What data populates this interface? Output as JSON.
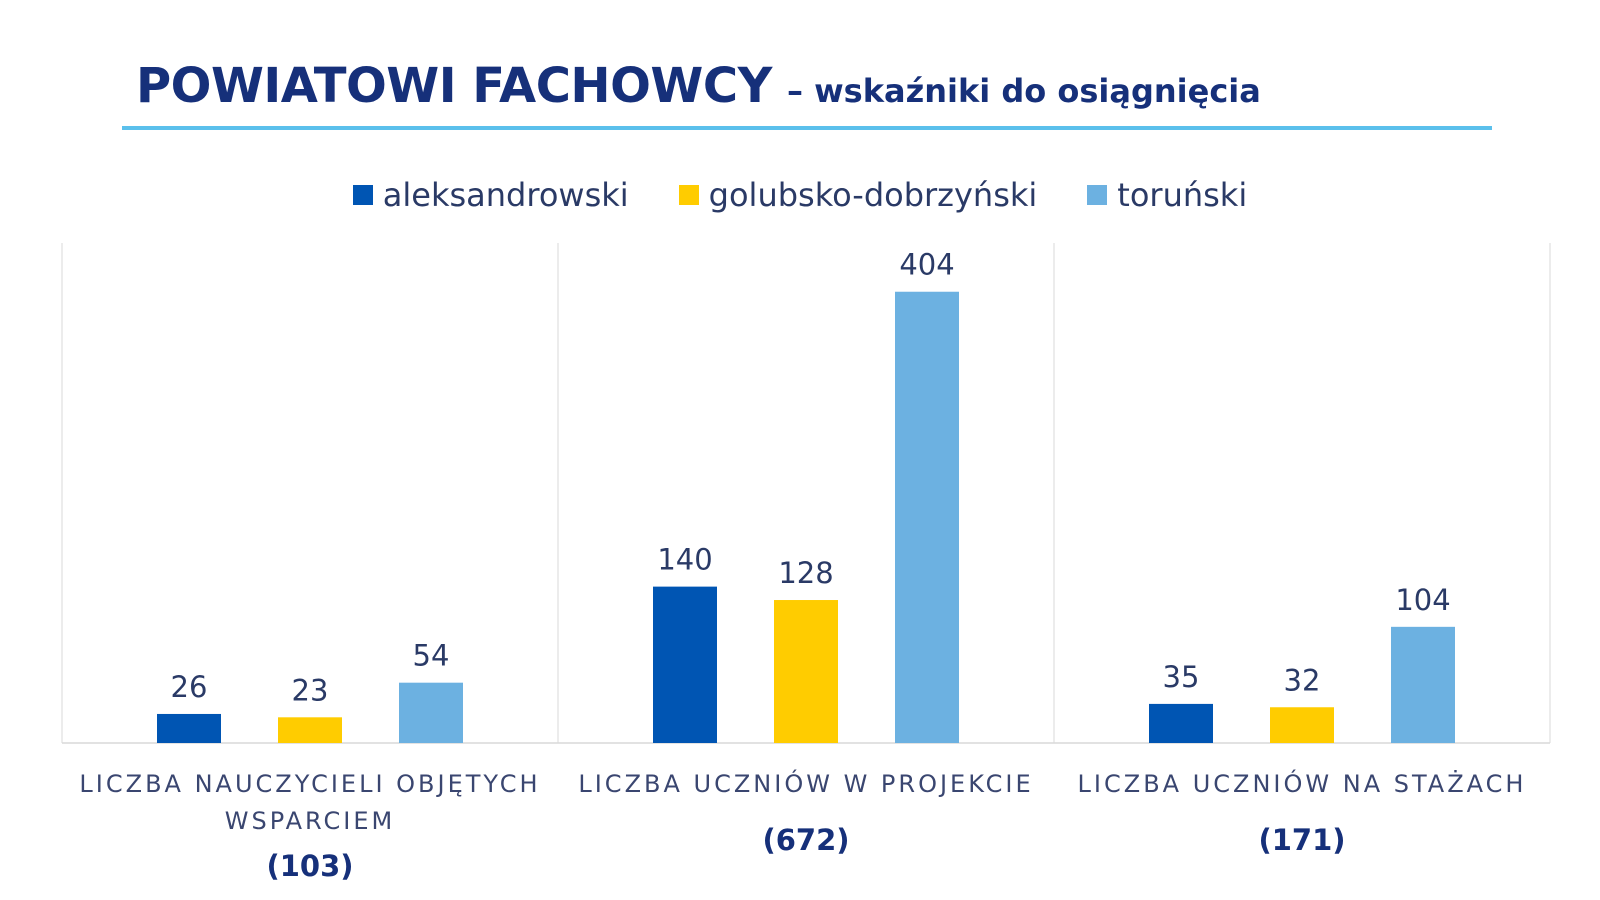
{
  "title": {
    "main": "POWIATOWI FACHOWCY",
    "sub": "– wskaźniki do osiągnięcia"
  },
  "colors": {
    "aleksandrowski": "#0055b3",
    "golubsko-dobrzyński": "#ffcc00",
    "toruński": "#6cb1e1",
    "title": "#16307a",
    "rule": "#5bc0ec"
  },
  "chart_data": {
    "type": "bar",
    "categories": [
      [
        "LICZBA NAUCZYCIELI OBJĘTYCH",
        "WSPARCIEM"
      ],
      [
        "LICZBA UCZNIÓW W PROJEKCIE"
      ],
      [
        "LICZBA UCZNIÓW NA STAŻACH"
      ]
    ],
    "totals": [
      "(103)",
      "(672)",
      "(171)"
    ],
    "series": [
      {
        "name": "aleksandrowski",
        "values": [
          26,
          140,
          35
        ],
        "color": "#0055b3"
      },
      {
        "name": "golubsko-dobrzyński",
        "values": [
          23,
          128,
          32
        ],
        "color": "#ffcc00"
      },
      {
        "name": "toruński",
        "values": [
          54,
          404,
          104
        ],
        "color": "#6cb1e1"
      }
    ],
    "ylim": [
      0,
      450
    ],
    "grid": false,
    "legend_position": "top-center"
  }
}
